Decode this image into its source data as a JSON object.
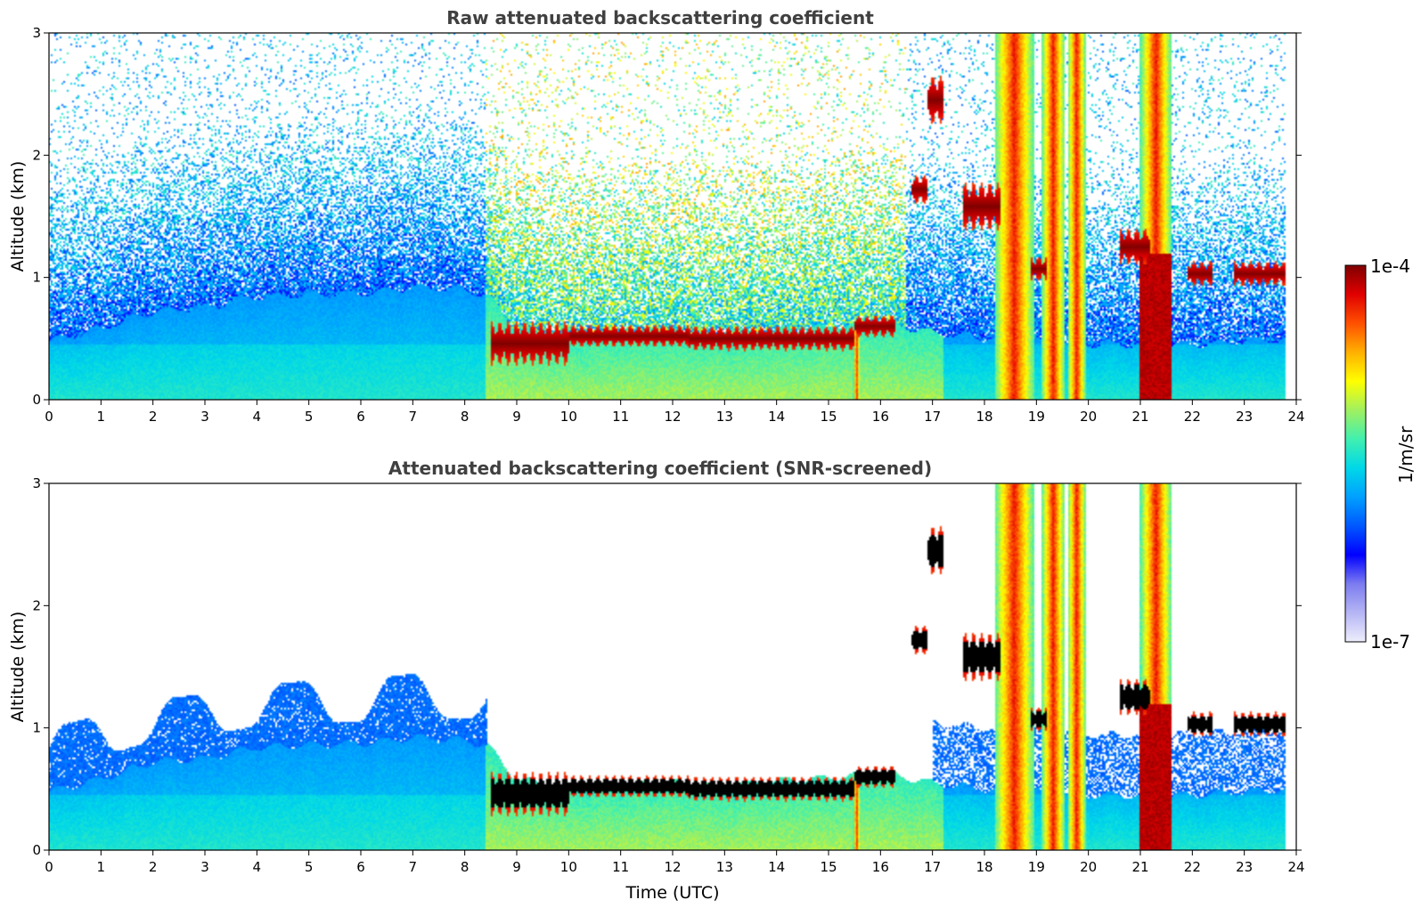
{
  "chart_data": [
    {
      "type": "heatmap",
      "id": "raw",
      "title": "Raw attenuated backscattering coefficient",
      "xlabel": "",
      "ylabel": "Altitude (km)",
      "xlim": [
        0,
        24
      ],
      "ylim": [
        0,
        3
      ],
      "xticks": [
        "0",
        "1",
        "2",
        "3",
        "4",
        "5",
        "6",
        "7",
        "8",
        "9",
        "10",
        "11",
        "12",
        "13",
        "14",
        "15",
        "16",
        "17",
        "18",
        "19",
        "20",
        "21",
        "22",
        "23",
        "24"
      ],
      "yticks": [
        "0",
        "1",
        "2",
        "3"
      ],
      "screened": false,
      "boundary_layer_top_km": [
        [
          0,
          0.48
        ],
        [
          1,
          0.58
        ],
        [
          2,
          0.72
        ],
        [
          3,
          0.75
        ],
        [
          4,
          0.84
        ],
        [
          5,
          0.86
        ],
        [
          6,
          0.87
        ],
        [
          7,
          0.92
        ],
        [
          8,
          0.9
        ],
        [
          8.45,
          0.85
        ],
        [
          9,
          0.58
        ],
        [
          10,
          0.5
        ],
        [
          11,
          0.53
        ],
        [
          12,
          0.56
        ],
        [
          13,
          0.52
        ],
        [
          14,
          0.57
        ],
        [
          15,
          0.59
        ],
        [
          16,
          0.64
        ],
        [
          17,
          0.55
        ],
        [
          18,
          0.5
        ],
        [
          20,
          0.45
        ],
        [
          22,
          0.45
        ],
        [
          23.8,
          0.5
        ]
      ],
      "cloud_layers": [
        {
          "t0": 8.5,
          "t1": 10.0,
          "z": 0.46,
          "dz": 0.18
        },
        {
          "t0": 10.0,
          "t1": 12.3,
          "z": 0.52,
          "dz": 0.09
        },
        {
          "t0": 12.3,
          "t1": 15.5,
          "z": 0.5,
          "dz": 0.1
        },
        {
          "t0": 15.5,
          "t1": 16.3,
          "z": 0.6,
          "dz": 0.09
        },
        {
          "t0": 16.6,
          "t1": 16.9,
          "z": 1.72,
          "dz": 0.12
        },
        {
          "t0": 16.9,
          "t1": 17.2,
          "z": 2.45,
          "dz": 0.2
        },
        {
          "t0": 17.6,
          "t1": 18.3,
          "z": 1.58,
          "dz": 0.2
        },
        {
          "t0": 18.9,
          "t1": 19.2,
          "z": 1.07,
          "dz": 0.1
        },
        {
          "t0": 20.6,
          "t1": 21.2,
          "z": 1.25,
          "dz": 0.15
        },
        {
          "t0": 21.9,
          "t1": 22.4,
          "z": 1.03,
          "dz": 0.1
        },
        {
          "t0": 22.8,
          "t1": 23.8,
          "z": 1.03,
          "dz": 0.1
        }
      ],
      "precipitation_columns": [
        {
          "t0": 15.48,
          "t1": 15.6,
          "ztop": 0.62
        },
        {
          "t0": 18.2,
          "t1": 18.95,
          "ztop": 3.0
        },
        {
          "t0": 19.1,
          "t1": 19.55,
          "ztop": 3.0
        },
        {
          "t0": 19.6,
          "t1": 19.95,
          "ztop": 3.0
        },
        {
          "t0": 21.0,
          "t1": 21.6,
          "ztop": 3.0
        }
      ]
    },
    {
      "type": "heatmap",
      "id": "snr",
      "title": "Attenuated backscattering coefficient (SNR-screened)",
      "xlabel": "Time (UTC)",
      "ylabel": "Altitude (km)",
      "xlim": [
        0,
        24
      ],
      "ylim": [
        0,
        3
      ],
      "xticks": [
        "0",
        "1",
        "2",
        "3",
        "4",
        "5",
        "6",
        "7",
        "8",
        "9",
        "10",
        "11",
        "12",
        "13",
        "14",
        "15",
        "16",
        "17",
        "18",
        "19",
        "20",
        "21",
        "22",
        "23",
        "24"
      ],
      "yticks": [
        "0",
        "1",
        "2",
        "3"
      ],
      "screened": true
    }
  ],
  "colorbar": {
    "max_label": "1e-4",
    "min_label": "1e-7",
    "label": "1/m/sr",
    "colors": [
      "#eeeefc",
      "#b5b5f5",
      "#7c7cf0",
      "#0000ff",
      "#0058ff",
      "#00a0ff",
      "#00d8e8",
      "#40f0b0",
      "#a0f060",
      "#ffff00",
      "#ffb000",
      "#ff5000",
      "#e00000",
      "#800000"
    ]
  }
}
